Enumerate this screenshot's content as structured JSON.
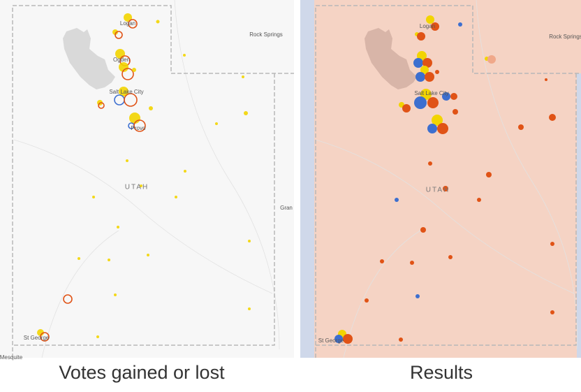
{
  "panels": [
    {
      "caption": "Votes gained or lost",
      "labels": [
        "Logan",
        "Ogden",
        "Salt Lake City",
        "Provo",
        "Rock Springs",
        "UTAH",
        "Gran",
        "St George",
        "Mesquite"
      ]
    },
    {
      "caption": "Results",
      "labels": [
        "Logan",
        "Salt Lake City",
        "UTAH",
        "Rock Springs",
        "St George"
      ]
    }
  ]
}
